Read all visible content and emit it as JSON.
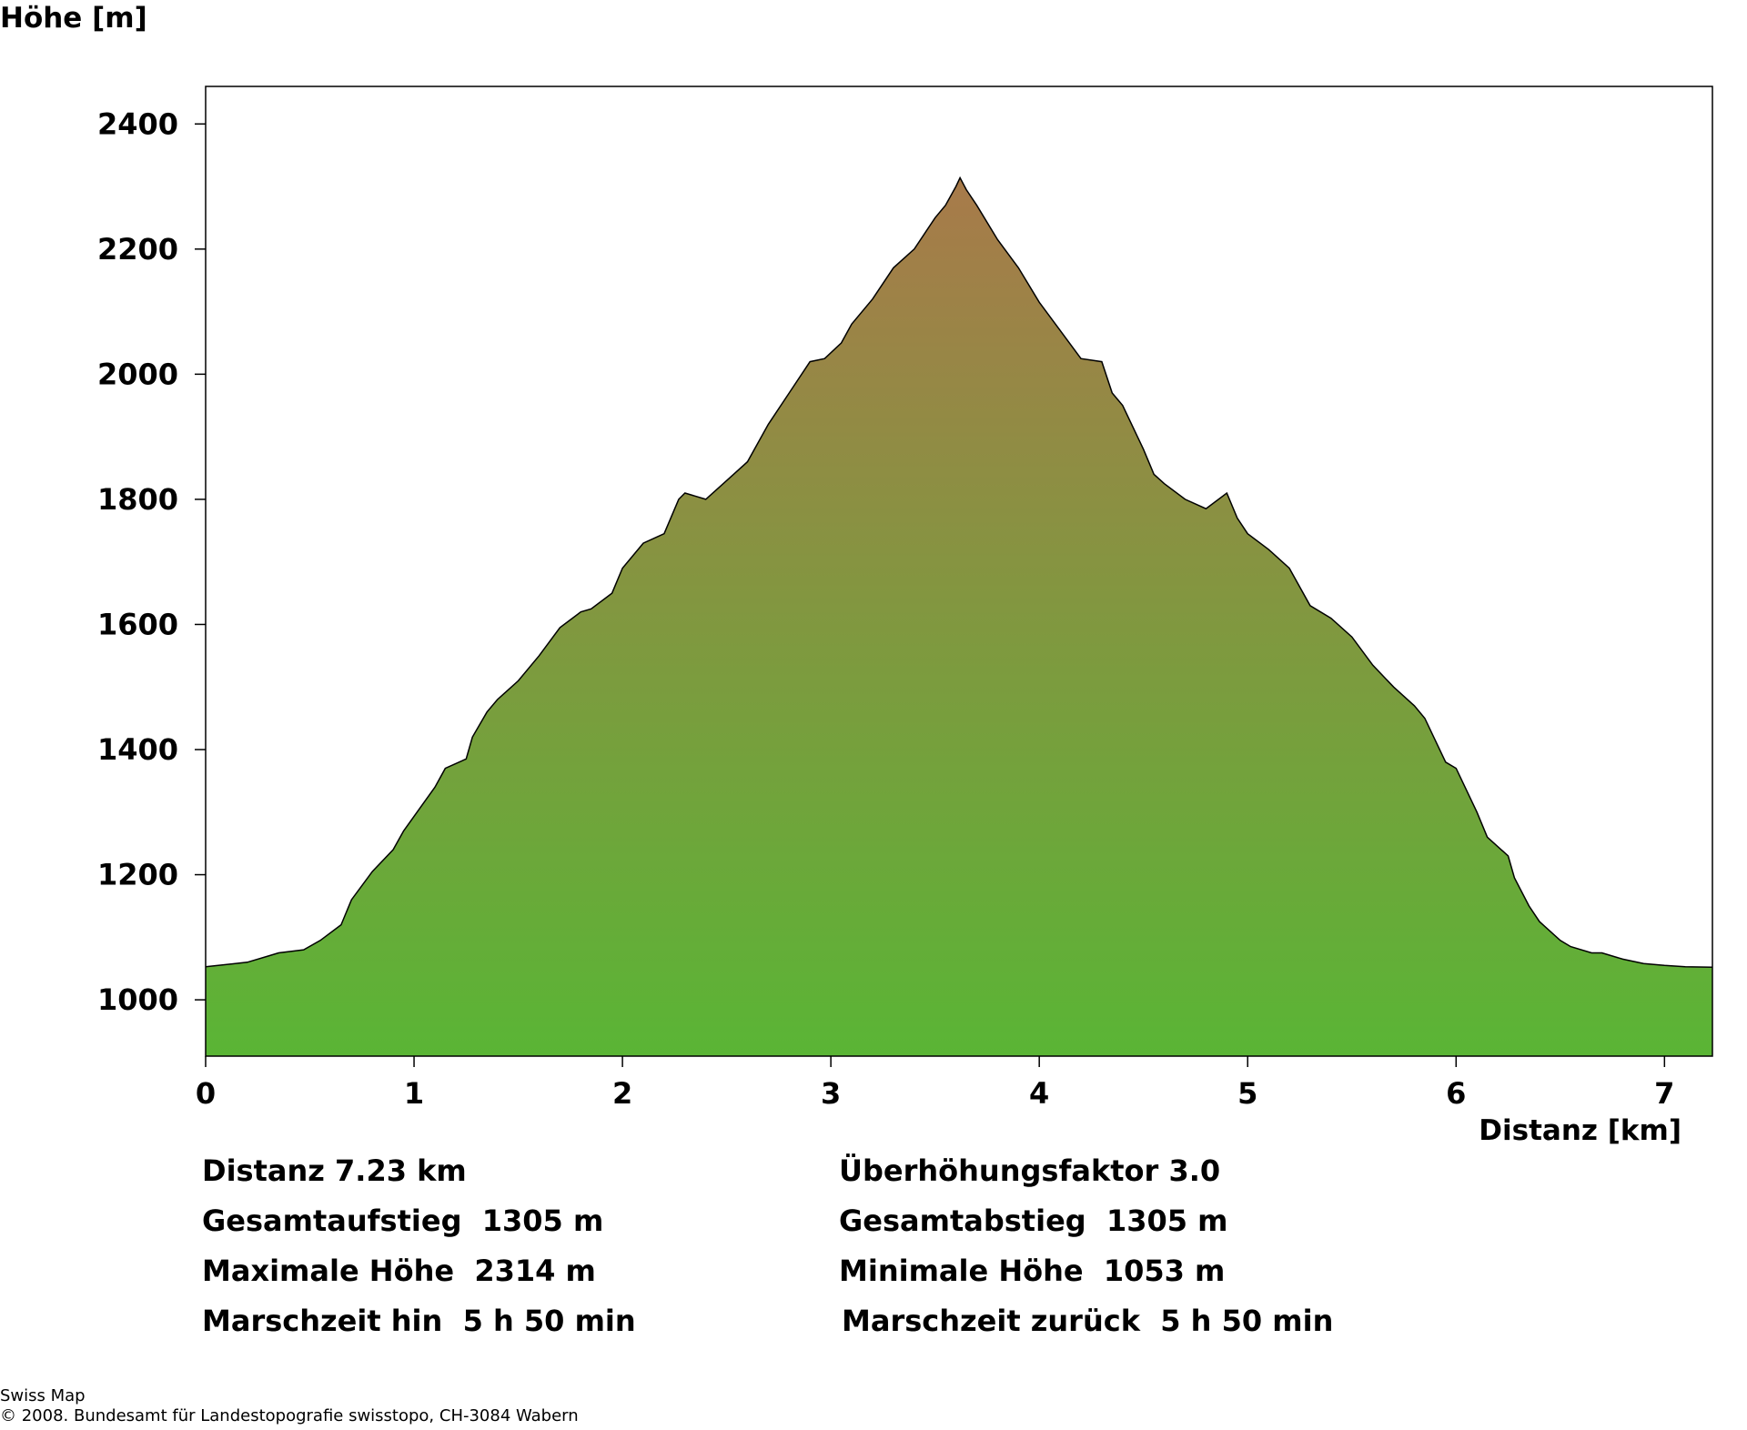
{
  "chart_data": {
    "type": "area",
    "title": "",
    "ylabel": "Höhe [m]",
    "xlabel": "Distanz [km]",
    "xlim": [
      0,
      7.23
    ],
    "ylim": [
      910,
      2460
    ],
    "xticks": [
      0,
      1,
      2,
      3,
      4,
      5,
      6,
      7
    ],
    "yticks": [
      1000,
      1200,
      1400,
      1600,
      1800,
      2000,
      2200,
      2400
    ],
    "grid": false,
    "fill_gradient": {
      "top": "#a87a4a",
      "bottom": "#5ab535"
    },
    "series": [
      {
        "x": [
          0,
          0.2,
          0.3,
          0.35,
          0.47,
          0.55,
          0.65,
          0.7,
          0.8,
          0.9,
          0.95,
          1.1,
          1.15,
          1.25,
          1.28,
          1.35,
          1.4,
          1.5,
          1.6,
          1.7,
          1.8,
          1.85,
          1.95,
          2.0,
          2.1,
          2.2,
          2.27,
          2.3,
          2.4,
          2.5,
          2.6,
          2.7,
          2.8,
          2.9,
          2.97,
          3.05,
          3.1,
          3.2,
          3.3,
          3.4,
          3.5,
          3.55,
          3.6,
          3.62,
          3.65,
          3.7,
          3.8,
          3.9,
          4.0,
          4.1,
          4.2,
          4.3,
          4.35,
          4.4,
          4.5,
          4.55,
          4.6,
          4.7,
          4.8,
          4.9,
          4.95,
          5.0,
          5.1,
          5.2,
          5.3,
          5.4,
          5.5,
          5.6,
          5.7,
          5.8,
          5.85,
          5.95,
          6.0,
          6.1,
          6.15,
          6.25,
          6.28,
          6.35,
          6.4,
          6.5,
          6.55,
          6.65,
          6.7,
          6.8,
          6.9,
          7.0,
          7.1,
          7.23
        ],
        "y": [
          1053,
          1060,
          1070,
          1075,
          1080,
          1095,
          1120,
          1160,
          1205,
          1240,
          1270,
          1340,
          1370,
          1385,
          1420,
          1460,
          1480,
          1510,
          1550,
          1595,
          1620,
          1625,
          1650,
          1690,
          1730,
          1745,
          1800,
          1810,
          1800,
          1830,
          1860,
          1920,
          1970,
          2020,
          2025,
          2050,
          2080,
          2120,
          2170,
          2200,
          2250,
          2270,
          2300,
          2314,
          2295,
          2270,
          2215,
          2170,
          2115,
          2070,
          2025,
          2020,
          1970,
          1950,
          1880,
          1840,
          1825,
          1800,
          1785,
          1810,
          1770,
          1745,
          1720,
          1690,
          1630,
          1610,
          1580,
          1535,
          1500,
          1470,
          1450,
          1380,
          1370,
          1300,
          1260,
          1230,
          1195,
          1150,
          1125,
          1095,
          1085,
          1075,
          1075,
          1065,
          1058,
          1055,
          1053,
          1052
        ]
      }
    ]
  },
  "stats": {
    "distance": "Distanz 7.23 km",
    "exaggeration": "Überhöhungsfaktor 3.0",
    "ascent": "Gesamtaufstieg  1305 m",
    "descent": "Gesamtabstieg  1305 m",
    "max_height": "Maximale Höhe  2314 m",
    "min_height": "Minimale Höhe  1053 m",
    "time_out": "Marschzeit hin  5 h 50 min",
    "time_back": "Marschzeit zurück  5 h 50 min"
  },
  "footer": {
    "line1": "Swiss Map",
    "line2": "© 2008. Bundesamt für Landestopografie swisstopo, CH-3084 Wabern"
  }
}
